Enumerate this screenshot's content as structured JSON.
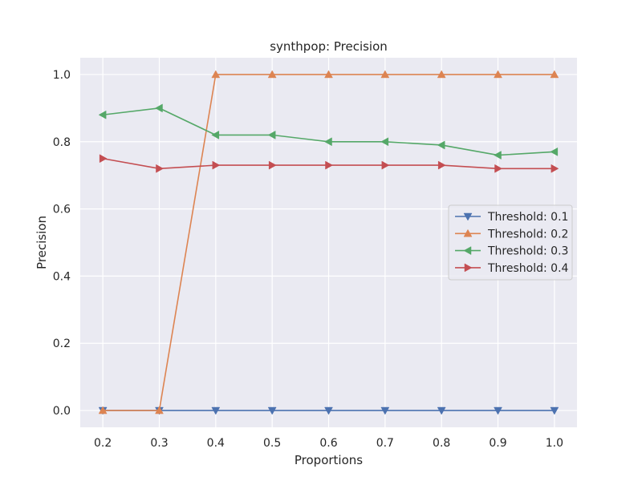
{
  "chart_data": {
    "type": "line",
    "title": "synthpop: Precision",
    "xlabel": "Proportions",
    "ylabel": "Precision",
    "x": [
      0.2,
      0.3,
      0.4,
      0.5,
      0.6,
      0.7,
      0.8,
      0.9,
      1.0
    ],
    "x_tick_labels": [
      "0.2",
      "0.3",
      "0.4",
      "0.5",
      "0.6",
      "0.7",
      "0.8",
      "0.9",
      "1.0"
    ],
    "y_ticks": [
      0.0,
      0.2,
      0.4,
      0.6,
      0.8,
      1.0
    ],
    "y_tick_labels": [
      "0.0",
      "0.2",
      "0.4",
      "0.6",
      "0.8",
      "1.0"
    ],
    "xlim": [
      0.16,
      1.04
    ],
    "ylim": [
      -0.05,
      1.05
    ],
    "grid": true,
    "legend_position": "center-right",
    "series": [
      {
        "name": "Threshold: 0.1",
        "color": "#4c72b0",
        "marker": "triangle-down",
        "values": [
          0.0,
          0.0,
          0.0,
          0.0,
          0.0,
          0.0,
          0.0,
          0.0,
          0.0
        ]
      },
      {
        "name": "Threshold: 0.2",
        "color": "#dd8452",
        "marker": "triangle-up",
        "values": [
          0.0,
          0.0,
          1.0,
          1.0,
          1.0,
          1.0,
          1.0,
          1.0,
          1.0
        ]
      },
      {
        "name": "Threshold: 0.3",
        "color": "#55a868",
        "marker": "triangle-left",
        "values": [
          0.88,
          0.9,
          0.82,
          0.82,
          0.8,
          0.8,
          0.79,
          0.76,
          0.77
        ]
      },
      {
        "name": "Threshold: 0.4",
        "color": "#c44e52",
        "marker": "triangle-right",
        "values": [
          0.75,
          0.72,
          0.73,
          0.73,
          0.73,
          0.73,
          0.73,
          0.72,
          0.72
        ]
      }
    ]
  }
}
